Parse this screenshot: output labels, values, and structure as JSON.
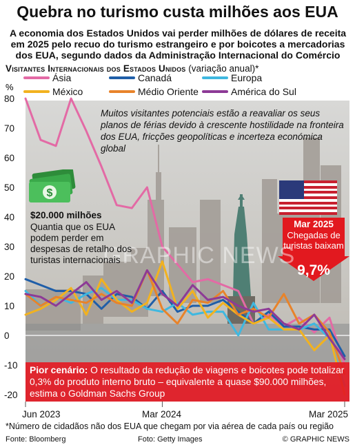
{
  "header": {
    "title": "Quebra no turismo custa milhões aos EUA",
    "subtitle": "A economia dos Estados Unidos vai perder milhões de dólares de receita em 2025 pelo recuo do turismo estrangeiro e por boicotes a mercadorias dos EUA, segundo dados da Administração Internacional do Comércio"
  },
  "chart_data": {
    "type": "line",
    "title": "Visitantes Internacionais dos Estados Unidos",
    "title_note": "(variação anual)*",
    "ylabel": "%",
    "ylim": [
      -22,
      82
    ],
    "yticks": [
      "80",
      "70",
      "60",
      "50",
      "40",
      "30",
      "20",
      "10",
      "0",
      "-10",
      "-20"
    ],
    "xticks": [
      "Jun 2023",
      "Mar 2024",
      "Mar 2025"
    ],
    "x": [
      "Jun 2023",
      "Jul 2023",
      "Aug 2023",
      "Sep 2023",
      "Oct 2023",
      "Nov 2023",
      "Dec 2023",
      "Jan 2024",
      "Feb 2024",
      "Mar 2024",
      "Apr 2024",
      "May 2024",
      "Jun 2024",
      "Jul 2024",
      "Aug 2024",
      "Sep 2024",
      "Oct 2024",
      "Nov 2024",
      "Dec 2024",
      "Jan 2025",
      "Feb 2025",
      "Mar 2025"
    ],
    "series": [
      {
        "name": "Ásia",
        "color": "#e36aa5",
        "values": [
          80,
          66,
          64,
          80,
          69,
          57,
          44,
          43,
          50,
          30,
          24,
          18,
          19,
          17,
          15,
          4,
          7,
          3,
          6,
          1,
          6,
          -10
        ]
      },
      {
        "name": "Canadá",
        "color": "#1f5ea8",
        "values": [
          19,
          17,
          15,
          15,
          14,
          9,
          14,
          13,
          9,
          15,
          8,
          10,
          10,
          12,
          8,
          4,
          8,
          3,
          3,
          2,
          2,
          -7
        ]
      },
      {
        "name": "Europa",
        "color": "#3fb8e0",
        "values": [
          15,
          10,
          13,
          11,
          14,
          16,
          12,
          12,
          9,
          8,
          11,
          7,
          8,
          8,
          0,
          11,
          2,
          2,
          2,
          4,
          -1,
          -17
        ]
      },
      {
        "name": "México",
        "color": "#f2b21f",
        "values": [
          7,
          9,
          12,
          16,
          7,
          19,
          12,
          8,
          11,
          25,
          9,
          15,
          6,
          11,
          7,
          4,
          6,
          2,
          2,
          -5,
          0,
          -20
        ]
      },
      {
        "name": "Médio Oriente",
        "color": "#e8832a",
        "values": [
          14,
          10,
          13,
          12,
          11,
          14,
          11,
          10,
          22,
          9,
          4,
          12,
          11,
          15,
          7,
          9,
          6,
          14,
          4,
          7,
          1,
          -13
        ]
      },
      {
        "name": "América do Sul",
        "color": "#8d3a96",
        "values": [
          14,
          13,
          10,
          14,
          18,
          12,
          15,
          11,
          22,
          14,
          10,
          17,
          12,
          13,
          10,
          8,
          9,
          4,
          2,
          7,
          -1,
          -8
        ]
      }
    ]
  },
  "annotations": {
    "top": "Muitos visitantes potenciais estão a reavaliar os seus planos de férias devido à crescente hostilidade na fronteira dos EUA, fricções geopolíticas e incerteza económica global",
    "money_title": "$20.000 milhões",
    "money_text": "Quantia que os EUA podem perder em despesas de retalho dos turistas internacionais",
    "arrow_title": "Mar 2025",
    "arrow_text": "Chegadas de turistas baixam",
    "arrow_value": "9,7%",
    "worst_label": "Pior cenário:",
    "worst_text": " O resultado da redução de viagens e boicotes pode totalizar 0,3% do produto interno bruto – equivalente a quase $90.000 milhões, estima o Goldman Sachs Group",
    "watermark": "GRAPHIC NEWS"
  },
  "footer": {
    "footnote": "*Número de cidadãos não dos EUA que chegam por via aérea de cada país ou região",
    "source": "Fonte: Bloomberg",
    "photo": "Foto: Getty Images",
    "copyright": "© GRAPHIC NEWS"
  },
  "colors": {
    "accent": "#e2191f",
    "money": "#2f9a3a"
  }
}
